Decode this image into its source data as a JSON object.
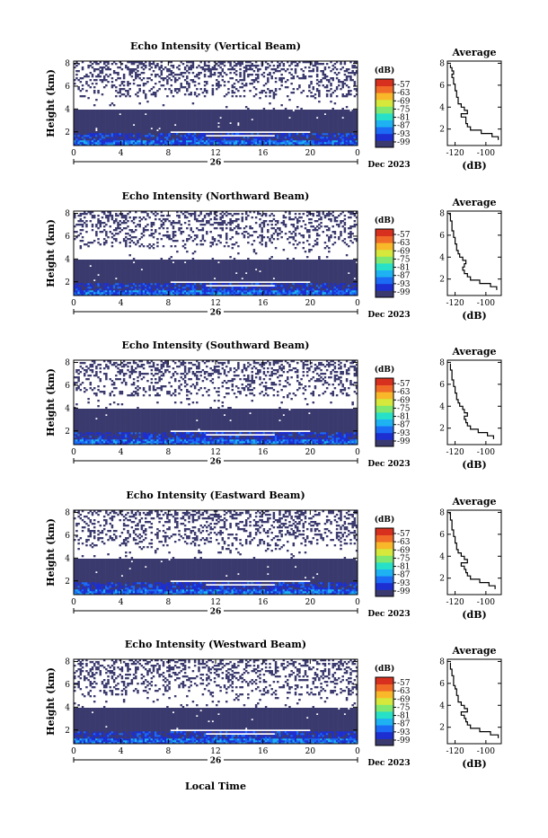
{
  "figure": {
    "xlabel": "Local Time",
    "date_label": "Dec 2023",
    "day_label": "26"
  },
  "colors": {
    "scale": [
      "#3b3a6e",
      "#1d2fd0",
      "#1b6bf5",
      "#1fb2f2",
      "#27e0c8",
      "#7fe870",
      "#d6e83b",
      "#f8b82a",
      "#f06a28",
      "#d8301f"
    ]
  },
  "chart_data": [
    {
      "type": "heatmap",
      "title": "Echo Intensity (Vertical Beam)",
      "ylabel": "Height (km)",
      "x_ticks": [
        "0",
        "4",
        "8",
        "12",
        "16",
        "20",
        "0"
      ],
      "xlim": [
        0,
        24
      ],
      "y_ticks": [
        "2",
        "4",
        "6",
        "8"
      ],
      "ylim": [
        0.8,
        8.2
      ],
      "colorbar_title": "(dB)",
      "colorbar_ticks": [
        "-57",
        "-63",
        "-69",
        "-75",
        "-81",
        "-87",
        "-93",
        "-99"
      ],
      "clim": [
        -99,
        -57
      ],
      "profile": {
        "title": "Average",
        "xlabel": "(dB)",
        "x_ticks": [
          "-120",
          "-100"
        ],
        "xlim": [
          -125,
          -90
        ],
        "y_ticks": [
          "2",
          "4",
          "6",
          "8"
        ],
        "ylim": [
          0.5,
          8.2
        ],
        "heights": [
          1.0,
          1.3,
          1.6,
          1.9,
          2.2,
          2.5,
          2.8,
          3.1,
          3.4,
          3.7,
          4.0,
          4.3,
          4.6,
          4.9,
          5.2,
          5.5,
          5.8,
          6.1,
          6.4,
          6.7,
          7.0,
          7.3,
          7.6,
          7.9
        ],
        "values": [
          -92,
          -96,
          -103,
          -110,
          -112,
          -113,
          -113,
          -116,
          -112,
          -114,
          -116,
          -118,
          -118,
          -119,
          -119,
          -120,
          -120,
          -121,
          -121,
          -122,
          -121,
          -122,
          -123,
          -123
        ]
      }
    },
    {
      "type": "heatmap",
      "title": "Echo Intensity (Northward Beam)",
      "ylabel": "Height (km)",
      "x_ticks": [
        "0",
        "4",
        "8",
        "12",
        "16",
        "20",
        "0"
      ],
      "xlim": [
        0,
        24
      ],
      "y_ticks": [
        "2",
        "4",
        "6",
        "8"
      ],
      "ylim": [
        0.8,
        8.2
      ],
      "colorbar_title": "(dB)",
      "colorbar_ticks": [
        "-57",
        "-63",
        "-69",
        "-75",
        "-81",
        "-87",
        "-93",
        "-99"
      ],
      "clim": [
        -99,
        -57
      ],
      "profile": {
        "title": "Average",
        "xlabel": "(dB)",
        "x_ticks": [
          "-120",
          "-100"
        ],
        "xlim": [
          -125,
          -90
        ],
        "y_ticks": [
          "2",
          "4",
          "6",
          "8"
        ],
        "ylim": [
          0.5,
          8.2
        ],
        "heights": [
          1.0,
          1.3,
          1.6,
          1.9,
          2.2,
          2.5,
          2.8,
          3.1,
          3.4,
          3.7,
          4.0,
          4.3,
          4.6,
          4.9,
          5.2,
          5.5,
          5.8,
          6.1,
          6.4,
          6.7,
          7.0,
          7.3,
          7.6,
          7.9
        ],
        "values": [
          -93,
          -97,
          -104,
          -110,
          -112,
          -114,
          -115,
          -114,
          -113,
          -115,
          -117,
          -118,
          -119,
          -119,
          -120,
          -120,
          -121,
          -121,
          -122,
          -122,
          -122,
          -123,
          -123,
          -124
        ]
      }
    },
    {
      "type": "heatmap",
      "title": "Echo Intensity (Southward Beam)",
      "ylabel": "Height (km)",
      "x_ticks": [
        "0",
        "4",
        "8",
        "12",
        "16",
        "20",
        "0"
      ],
      "xlim": [
        0,
        24
      ],
      "y_ticks": [
        "2",
        "4",
        "6",
        "8"
      ],
      "ylim": [
        0.8,
        8.2
      ],
      "colorbar_title": "(dB)",
      "colorbar_ticks": [
        "-57",
        "-63",
        "-69",
        "-75",
        "-81",
        "-87",
        "-93",
        "-99"
      ],
      "clim": [
        -99,
        -57
      ],
      "profile": {
        "title": "Average",
        "xlabel": "(dB)",
        "x_ticks": [
          "-120",
          "-100"
        ],
        "xlim": [
          -125,
          -90
        ],
        "y_ticks": [
          "2",
          "4",
          "6",
          "8"
        ],
        "ylim": [
          0.5,
          8.2
        ],
        "heights": [
          1.0,
          1.3,
          1.6,
          1.9,
          2.2,
          2.5,
          2.8,
          3.1,
          3.4,
          3.7,
          4.0,
          4.3,
          4.6,
          4.9,
          5.2,
          5.5,
          5.8,
          6.1,
          6.4,
          6.7,
          7.0,
          7.3,
          7.6,
          7.9
        ],
        "values": [
          -95,
          -99,
          -105,
          -110,
          -112,
          -113,
          -114,
          -112,
          -114,
          -115,
          -117,
          -118,
          -119,
          -119,
          -120,
          -120,
          -121,
          -121,
          -122,
          -122,
          -122,
          -123,
          -123,
          -123
        ]
      }
    },
    {
      "type": "heatmap",
      "title": "Echo Intensity (Eastward Beam)",
      "ylabel": "Height (km)",
      "x_ticks": [
        "0",
        "4",
        "8",
        "12",
        "16",
        "20",
        "0"
      ],
      "xlim": [
        0,
        24
      ],
      "y_ticks": [
        "2",
        "4",
        "6",
        "8"
      ],
      "ylim": [
        0.8,
        8.2
      ],
      "colorbar_title": "(dB)",
      "colorbar_ticks": [
        "-57",
        "-63",
        "-69",
        "-75",
        "-81",
        "-87",
        "-93",
        "-99"
      ],
      "clim": [
        -99,
        -57
      ],
      "profile": {
        "title": "Average",
        "xlabel": "(dB)",
        "x_ticks": [
          "-120",
          "-100"
        ],
        "xlim": [
          -125,
          -90
        ],
        "y_ticks": [
          "2",
          "4",
          "6",
          "8"
        ],
        "ylim": [
          0.5,
          8.2
        ],
        "heights": [
          1.0,
          1.3,
          1.6,
          1.9,
          2.2,
          2.5,
          2.8,
          3.1,
          3.4,
          3.7,
          4.0,
          4.3,
          4.6,
          4.9,
          5.2,
          5.5,
          5.8,
          6.1,
          6.4,
          6.7,
          7.0,
          7.3,
          7.6,
          7.9
        ],
        "values": [
          -94,
          -98,
          -104,
          -110,
          -112,
          -113,
          -114,
          -116,
          -112,
          -114,
          -116,
          -118,
          -119,
          -119,
          -120,
          -120,
          -121,
          -121,
          -122,
          -122,
          -122,
          -123,
          -123,
          -124
        ]
      }
    },
    {
      "type": "heatmap",
      "title": "Echo Intensity (Westward Beam)",
      "ylabel": "Height (km)",
      "x_ticks": [
        "0",
        "4",
        "8",
        "12",
        "16",
        "20",
        "0"
      ],
      "xlim": [
        0,
        24
      ],
      "y_ticks": [
        "2",
        "4",
        "6",
        "8"
      ],
      "ylim": [
        0.8,
        8.2
      ],
      "colorbar_title": "(dB)",
      "colorbar_ticks": [
        "-57",
        "-63",
        "-69",
        "-75",
        "-81",
        "-87",
        "-93",
        "-99"
      ],
      "clim": [
        -99,
        -57
      ],
      "profile": {
        "title": "Average",
        "xlabel": "(dB)",
        "x_ticks": [
          "-120",
          "-100"
        ],
        "xlim": [
          -125,
          -90
        ],
        "y_ticks": [
          "2",
          "4",
          "6",
          "8"
        ],
        "ylim": [
          0.5,
          8.2
        ],
        "heights": [
          1.0,
          1.3,
          1.6,
          1.9,
          2.2,
          2.5,
          2.8,
          3.1,
          3.4,
          3.7,
          4.0,
          4.3,
          4.6,
          4.9,
          5.2,
          5.5,
          5.8,
          6.1,
          6.4,
          6.7,
          7.0,
          7.3,
          7.6,
          7.9
        ],
        "values": [
          -92,
          -97,
          -104,
          -110,
          -112,
          -113,
          -114,
          -116,
          -112,
          -114,
          -116,
          -118,
          -118,
          -119,
          -119,
          -120,
          -121,
          -121,
          -121,
          -122,
          -122,
          -123,
          -123,
          -123
        ]
      }
    }
  ]
}
